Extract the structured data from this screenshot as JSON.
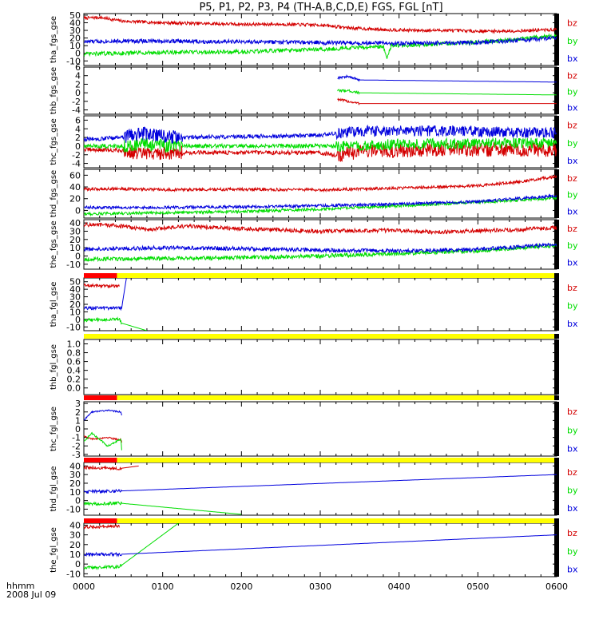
{
  "title": "P5, P1, P2, P3, P4 (TH-A,B,C,D,E) FGS, FGL [nT]",
  "colors": {
    "bz": "#d40000",
    "by": "#00dd00",
    "bx": "#0000dd",
    "bar_red": "#ff0000",
    "bar_yellow": "#ffff00",
    "axis": "#000000"
  },
  "time_axis": {
    "ticks": [
      "0000",
      "0100",
      "0200",
      "0300",
      "0400",
      "0500",
      "0600"
    ],
    "label_line1": "hhmm",
    "label_line2": "2008 Jul 09"
  },
  "chart_data": [
    {
      "type": "line",
      "ylabel": "tha_fgs_gse",
      "ylim": [
        -16,
        52
      ],
      "yticks": [
        "50",
        "40",
        "30",
        "20",
        "10",
        "0",
        "-10"
      ],
      "legend": [
        "bz",
        "by",
        "bx"
      ],
      "series": [
        {
          "name": "bz",
          "color": "#d40000",
          "noise": 0.6,
          "x": [
            0,
            20,
            50,
            100,
            150,
            200,
            250,
            300,
            340,
            380,
            420,
            460,
            500,
            540,
            600
          ],
          "y": [
            46,
            47,
            42,
            40,
            39,
            38,
            38,
            37,
            33,
            31,
            30,
            30,
            29,
            29,
            31
          ]
        },
        {
          "name": "by",
          "color": "#00dd00",
          "noise": 0.8,
          "x": [
            0,
            40,
            100,
            200,
            300,
            380,
            385,
            390,
            450,
            520,
            600
          ],
          "y": [
            -1,
            0,
            1,
            2,
            5,
            9,
            -6,
            10,
            12,
            16,
            23
          ]
        },
        {
          "name": "bx",
          "color": "#0000dd",
          "noise": 0.8,
          "x": [
            0,
            30,
            100,
            200,
            300,
            400,
            500,
            600
          ],
          "y": [
            15,
            16,
            16,
            15,
            14,
            13,
            14,
            20
          ]
        }
      ]
    },
    {
      "type": "line",
      "ylabel": "thb_fgs_gse",
      "ylim": [
        -5,
        6
      ],
      "yticks": [
        "6",
        "4",
        "2",
        "0",
        "-2",
        "-4"
      ],
      "legend": [
        "bz",
        "by",
        "bx"
      ],
      "series": [
        {
          "name": "bz",
          "color": "#d40000",
          "noise": 0.5,
          "x": [
            322,
            335,
            350,
            600
          ],
          "y": [
            -1.5,
            -2,
            -2.5,
            -2.5
          ]
        },
        {
          "name": "by",
          "color": "#00dd00",
          "noise": 0.5,
          "x": [
            322,
            335,
            350,
            600
          ],
          "y": [
            0.5,
            0.5,
            0,
            -0.5
          ]
        },
        {
          "name": "bx",
          "color": "#0000dd",
          "noise": 0.5,
          "x": [
            322,
            335,
            350,
            600
          ],
          "y": [
            3.5,
            3.8,
            3,
            2.5
          ]
        }
      ]
    },
    {
      "type": "line",
      "ylabel": "thc_fgs_gse",
      "ylim": [
        -5,
        7
      ],
      "yticks": [
        "6",
        "4",
        "2",
        "0",
        "-2",
        "-4"
      ],
      "legend": [
        "bz",
        "by",
        "bx"
      ],
      "series": [
        {
          "name": "bz",
          "color": "#d40000",
          "noise": 0.8,
          "x": [
            0,
            50,
            70,
            120,
            300,
            320,
            350,
            400,
            460,
            600
          ],
          "y": [
            -0.8,
            -1,
            -1.8,
            -1.5,
            -1.5,
            -2.2,
            -1.2,
            -1,
            -0.8,
            -0.8
          ]
        },
        {
          "name": "by",
          "color": "#00dd00",
          "noise": 0.8,
          "x": [
            0,
            50,
            70,
            120,
            300,
            350,
            400,
            460,
            600
          ],
          "y": [
            0,
            0,
            0.5,
            0,
            0,
            0,
            0.5,
            0.5,
            0.8
          ]
        },
        {
          "name": "bx",
          "color": "#0000dd",
          "noise": 0.8,
          "x": [
            0,
            50,
            70,
            120,
            300,
            350,
            400,
            460,
            600
          ],
          "y": [
            1.5,
            2,
            3,
            2,
            2.5,
            3.5,
            3.5,
            3.5,
            3
          ]
        }
      ]
    },
    {
      "type": "line",
      "ylabel": "thd_fgs_gse",
      "ylim": [
        -13,
        70
      ],
      "yticks": [
        "60",
        "40",
        "20",
        "0"
      ],
      "legend": [
        "bz",
        "by",
        "bx"
      ],
      "series": [
        {
          "name": "bz",
          "color": "#d40000",
          "noise": 0.6,
          "x": [
            0,
            40,
            100,
            200,
            300,
            400,
            500,
            560,
            600
          ],
          "y": [
            36,
            37,
            35,
            36,
            35,
            38,
            42,
            50,
            58
          ]
        },
        {
          "name": "by",
          "color": "#00dd00",
          "noise": 0.6,
          "x": [
            0,
            100,
            200,
            300,
            400,
            500,
            600
          ],
          "y": [
            -6,
            -4,
            -2,
            2,
            8,
            14,
            21
          ]
        },
        {
          "name": "bx",
          "color": "#0000dd",
          "noise": 0.6,
          "x": [
            0,
            100,
            200,
            300,
            400,
            500,
            600
          ],
          "y": [
            5,
            5,
            6,
            8,
            11,
            15,
            25
          ]
        }
      ]
    },
    {
      "type": "line",
      "ylabel": "the_fgs_gse",
      "ylim": [
        -16,
        44
      ],
      "yticks": [
        "40",
        "30",
        "20",
        "10",
        "0",
        "-10"
      ],
      "legend": [
        "bz",
        "by",
        "bx"
      ],
      "series": [
        {
          "name": "bz",
          "color": "#d40000",
          "noise": 0.8,
          "x": [
            0,
            40,
            80,
            130,
            200,
            300,
            380,
            450,
            520,
            600
          ],
          "y": [
            38,
            37,
            32,
            36,
            33,
            30,
            31,
            29,
            31,
            34
          ]
        },
        {
          "name": "by",
          "color": "#00dd00",
          "noise": 0.8,
          "x": [
            0,
            100,
            200,
            300,
            400,
            500,
            600
          ],
          "y": [
            -4,
            -3,
            -2,
            0,
            3,
            6,
            13
          ]
        },
        {
          "name": "bx",
          "color": "#0000dd",
          "noise": 0.8,
          "x": [
            0,
            40,
            100,
            200,
            300,
            400,
            500,
            600
          ],
          "y": [
            8,
            9,
            10,
            9,
            7,
            6,
            8,
            14
          ]
        }
      ]
    },
    {
      "type": "line",
      "ylabel": "tha_fgl_gse",
      "ylim": [
        -15,
        55
      ],
      "yticks": [
        "50",
        "40",
        "30",
        "20",
        "10",
        "0",
        "-10"
      ],
      "legend": [
        "bz",
        "by",
        "bx"
      ],
      "bar": {
        "red_until": 42
      },
      "series": [
        {
          "name": "bz",
          "color": "#d40000",
          "noise": 0.6,
          "x": [
            0,
            45
          ],
          "y": [
            45,
            44
          ]
        },
        {
          "name": "by",
          "color": "#00dd00",
          "noise": 0.6,
          "x": [
            0,
            45,
            48,
            80
          ],
          "y": [
            -1,
            0,
            -5,
            -15
          ]
        },
        {
          "name": "bx",
          "color": "#0000dd",
          "noise": 0.6,
          "x": [
            0,
            48,
            54
          ],
          "y": [
            15,
            15,
            55
          ]
        }
      ]
    },
    {
      "type": "line",
      "ylabel": "thb_fgl_gse",
      "ylim": [
        -0.15,
        1.1
      ],
      "yticks": [
        "1.0",
        "0.8",
        "0.6",
        "0.4",
        "0.2",
        "0.0"
      ],
      "legend": [],
      "bar": {
        "red_until": 0
      },
      "series": []
    },
    {
      "type": "line",
      "ylabel": "thc_fgl_gse",
      "ylim": [
        -3.2,
        3.2
      ],
      "yticks": [
        "3",
        "2",
        "1",
        "0",
        "-1",
        "-2",
        "-3"
      ],
      "legend": [
        "bz",
        "by",
        "bx"
      ],
      "bar": {
        "red_until": 42
      },
      "series": [
        {
          "name": "bz",
          "color": "#d40000",
          "noise": 0.3,
          "x": [
            0,
            10,
            30,
            47,
            48
          ],
          "y": [
            -0.8,
            -1.2,
            -1,
            -1.3,
            -1.6
          ]
        },
        {
          "name": "by",
          "color": "#00dd00",
          "noise": 0.3,
          "x": [
            0,
            10,
            30,
            47,
            48
          ],
          "y": [
            -1.5,
            -0.5,
            -2,
            -1.2,
            -2.5
          ]
        },
        {
          "name": "bx",
          "color": "#0000dd",
          "noise": 0.25,
          "x": [
            0,
            10,
            30,
            47,
            48
          ],
          "y": [
            1,
            2,
            2.2,
            2,
            1.6
          ]
        }
      ]
    },
    {
      "type": "line",
      "ylabel": "thd_fgl_gse",
      "ylim": [
        -17,
        44
      ],
      "yticks": [
        "40",
        "30",
        "20",
        "10",
        "0",
        "-10"
      ],
      "legend": [
        "bz",
        "by",
        "bx"
      ],
      "bar": {
        "red_until": 42
      },
      "series": [
        {
          "name": "bz",
          "color": "#d40000",
          "noise": 0.6,
          "x": [
            0,
            45,
            70
          ],
          "y": [
            38,
            37,
            40
          ]
        },
        {
          "name": "by",
          "color": "#00dd00",
          "noise": 0.6,
          "x": [
            0,
            45,
            200
          ],
          "y": [
            -4,
            -3,
            -16
          ]
        },
        {
          "name": "bx",
          "color": "#0000dd",
          "noise": 0.6,
          "x": [
            0,
            45,
            600
          ],
          "y": [
            10,
            11,
            30
          ]
        }
      ]
    },
    {
      "type": "line",
      "ylabel": "the_fgl_gse",
      "ylim": [
        -13,
        42
      ],
      "yticks": [
        "40",
        "30",
        "20",
        "10",
        "0",
        "-10"
      ],
      "legend": [
        "bz",
        "by",
        "bx"
      ],
      "bar": {
        "red_until": 42
      },
      "series": [
        {
          "name": "bz",
          "color": "#d40000",
          "noise": 0.6,
          "x": [
            0,
            45
          ],
          "y": [
            38,
            39
          ]
        },
        {
          "name": "by",
          "color": "#00dd00",
          "noise": 0.6,
          "x": [
            0,
            45,
            120
          ],
          "y": [
            -4,
            -3,
            42
          ]
        },
        {
          "name": "bx",
          "color": "#0000dd",
          "noise": 0.6,
          "x": [
            0,
            45,
            600
          ],
          "y": [
            10,
            10,
            30
          ]
        }
      ]
    }
  ]
}
